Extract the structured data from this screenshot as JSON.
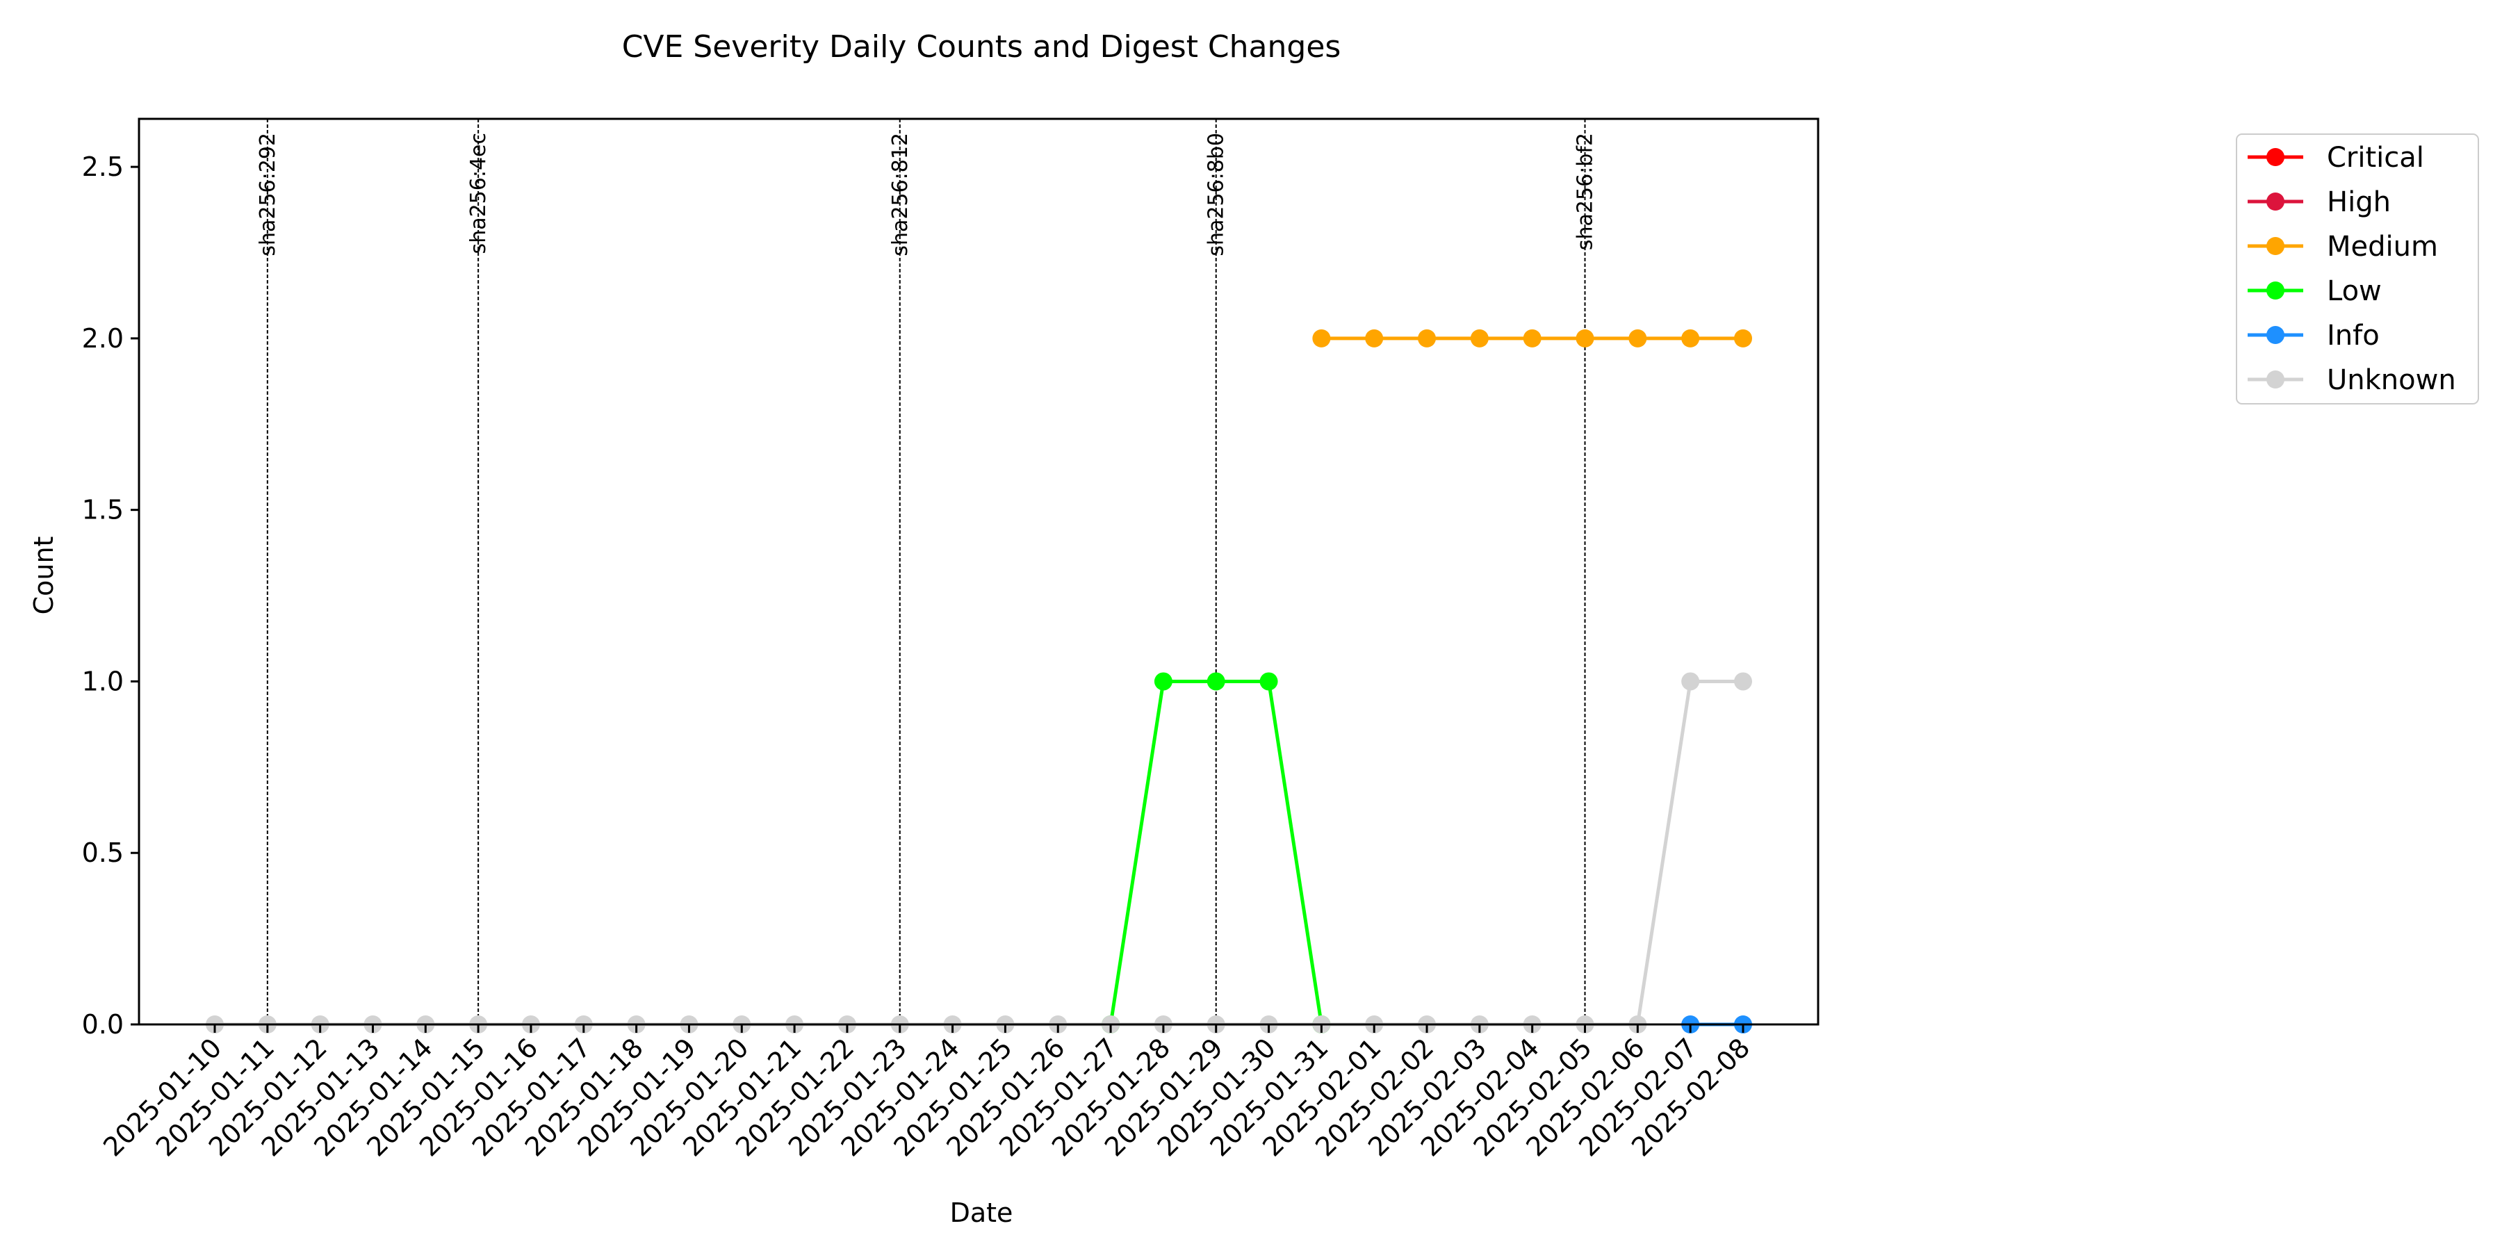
{
  "chart_data": {
    "type": "line",
    "title": "CVE Severity Daily Counts and Digest Changes",
    "xlabel": "Date",
    "ylabel": "Count",
    "ylim": [
      0,
      2.64
    ],
    "yticks": [
      "0.0",
      "0.5",
      "1.0",
      "1.5",
      "2.0",
      "2.5"
    ],
    "grid": false,
    "legend_position": "outside right, top",
    "categories": [
      "2025-01-10",
      "2025-01-11",
      "2025-01-12",
      "2025-01-13",
      "2025-01-14",
      "2025-01-15",
      "2025-01-16",
      "2025-01-17",
      "2025-01-18",
      "2025-01-19",
      "2025-01-20",
      "2025-01-21",
      "2025-01-22",
      "2025-01-23",
      "2025-01-24",
      "2025-01-25",
      "2025-01-26",
      "2025-01-27",
      "2025-01-28",
      "2025-01-29",
      "2025-01-30",
      "2025-01-31",
      "2025-02-01",
      "2025-02-02",
      "2025-02-03",
      "2025-02-04",
      "2025-02-05",
      "2025-02-06",
      "2025-02-07",
      "2025-02-08"
    ],
    "series": [
      {
        "name": "Critical",
        "color": "#ff0000",
        "values": [
          null,
          null,
          null,
          null,
          null,
          null,
          null,
          null,
          null,
          null,
          null,
          null,
          null,
          null,
          null,
          null,
          null,
          null,
          null,
          null,
          null,
          null,
          null,
          null,
          null,
          null,
          null,
          null,
          null,
          null
        ]
      },
      {
        "name": "High",
        "color": "#dc143c",
        "values": [
          null,
          null,
          null,
          null,
          null,
          null,
          null,
          null,
          null,
          null,
          null,
          null,
          null,
          null,
          null,
          null,
          null,
          null,
          null,
          null,
          null,
          null,
          null,
          null,
          null,
          null,
          null,
          null,
          null,
          null
        ]
      },
      {
        "name": "Medium",
        "color": "#ffa500",
        "values": [
          null,
          null,
          null,
          null,
          null,
          null,
          null,
          null,
          null,
          null,
          null,
          null,
          null,
          null,
          null,
          null,
          null,
          null,
          null,
          null,
          null,
          2,
          2,
          2,
          2,
          2,
          2,
          2,
          2,
          2
        ]
      },
      {
        "name": "Low",
        "color": "#00ff00",
        "values": [
          null,
          null,
          null,
          null,
          null,
          null,
          null,
          null,
          null,
          null,
          null,
          null,
          null,
          null,
          null,
          null,
          null,
          0,
          1,
          1,
          1,
          0,
          null,
          null,
          null,
          null,
          null,
          null,
          null,
          null
        ]
      },
      {
        "name": "Info",
        "color": "#1e90ff",
        "values": [
          null,
          null,
          null,
          null,
          null,
          null,
          null,
          null,
          null,
          null,
          null,
          null,
          null,
          null,
          null,
          null,
          null,
          null,
          null,
          null,
          null,
          null,
          null,
          null,
          null,
          null,
          null,
          null,
          0,
          0
        ]
      },
      {
        "name": "Unknown",
        "color": "#d3d3d3",
        "values": [
          0,
          0,
          0,
          0,
          0,
          0,
          0,
          0,
          0,
          0,
          0,
          0,
          0,
          0,
          0,
          0,
          0,
          0,
          0,
          0,
          0,
          0,
          0,
          0,
          0,
          0,
          0,
          0,
          1,
          1
        ]
      }
    ],
    "annotations": [
      {
        "date": "2025-01-11",
        "label": "sha256:292"
      },
      {
        "date": "2025-01-15",
        "label": "sha256:4ec"
      },
      {
        "date": "2025-01-23",
        "label": "sha256:812"
      },
      {
        "date": "2025-01-29",
        "label": "sha256:8b0"
      },
      {
        "date": "2025-02-05",
        "label": "sha256:bf2"
      }
    ]
  }
}
